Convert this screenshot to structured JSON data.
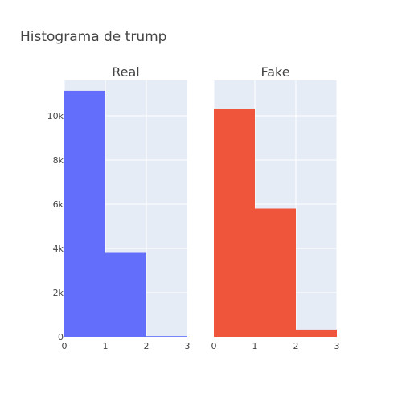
{
  "chart_data": {
    "title": "Histograma de trump",
    "type": "bar",
    "colors": {
      "Real": "#636efa",
      "Fake": "#ef553b",
      "plot_bg": "#e5ecf6",
      "grid": "#ffffff"
    },
    "y_ticks": [
      {
        "value": 0,
        "label": "0"
      },
      {
        "value": 2000,
        "label": "2k"
      },
      {
        "value": 4000,
        "label": "4k"
      },
      {
        "value": 6000,
        "label": "6k"
      },
      {
        "value": 8000,
        "label": "8k"
      },
      {
        "value": 10000,
        "label": "10k"
      }
    ],
    "x_ticks": [
      {
        "value": 0,
        "label": "0"
      },
      {
        "value": 1,
        "label": "1"
      },
      {
        "value": 2,
        "label": "2"
      },
      {
        "value": 3,
        "label": "3"
      }
    ],
    "panels": [
      {
        "name": "Real",
        "xlim": [
          0,
          3
        ],
        "ylim": [
          0,
          11600
        ],
        "show_y_ticks": true,
        "bins": [
          {
            "x0": 0,
            "x1": 1,
            "count": 11130
          },
          {
            "x0": 1,
            "x1": 2,
            "count": 3800
          },
          {
            "x0": 2,
            "x1": 3,
            "count": 30
          }
        ]
      },
      {
        "name": "Fake",
        "xlim": [
          0,
          3
        ],
        "ylim": [
          0,
          11600
        ],
        "show_y_ticks": false,
        "bins": [
          {
            "x0": 0,
            "x1": 1,
            "count": 10300
          },
          {
            "x0": 1,
            "x1": 2,
            "count": 5800
          },
          {
            "x0": 2,
            "x1": 3,
            "count": 330
          }
        ]
      }
    ]
  }
}
